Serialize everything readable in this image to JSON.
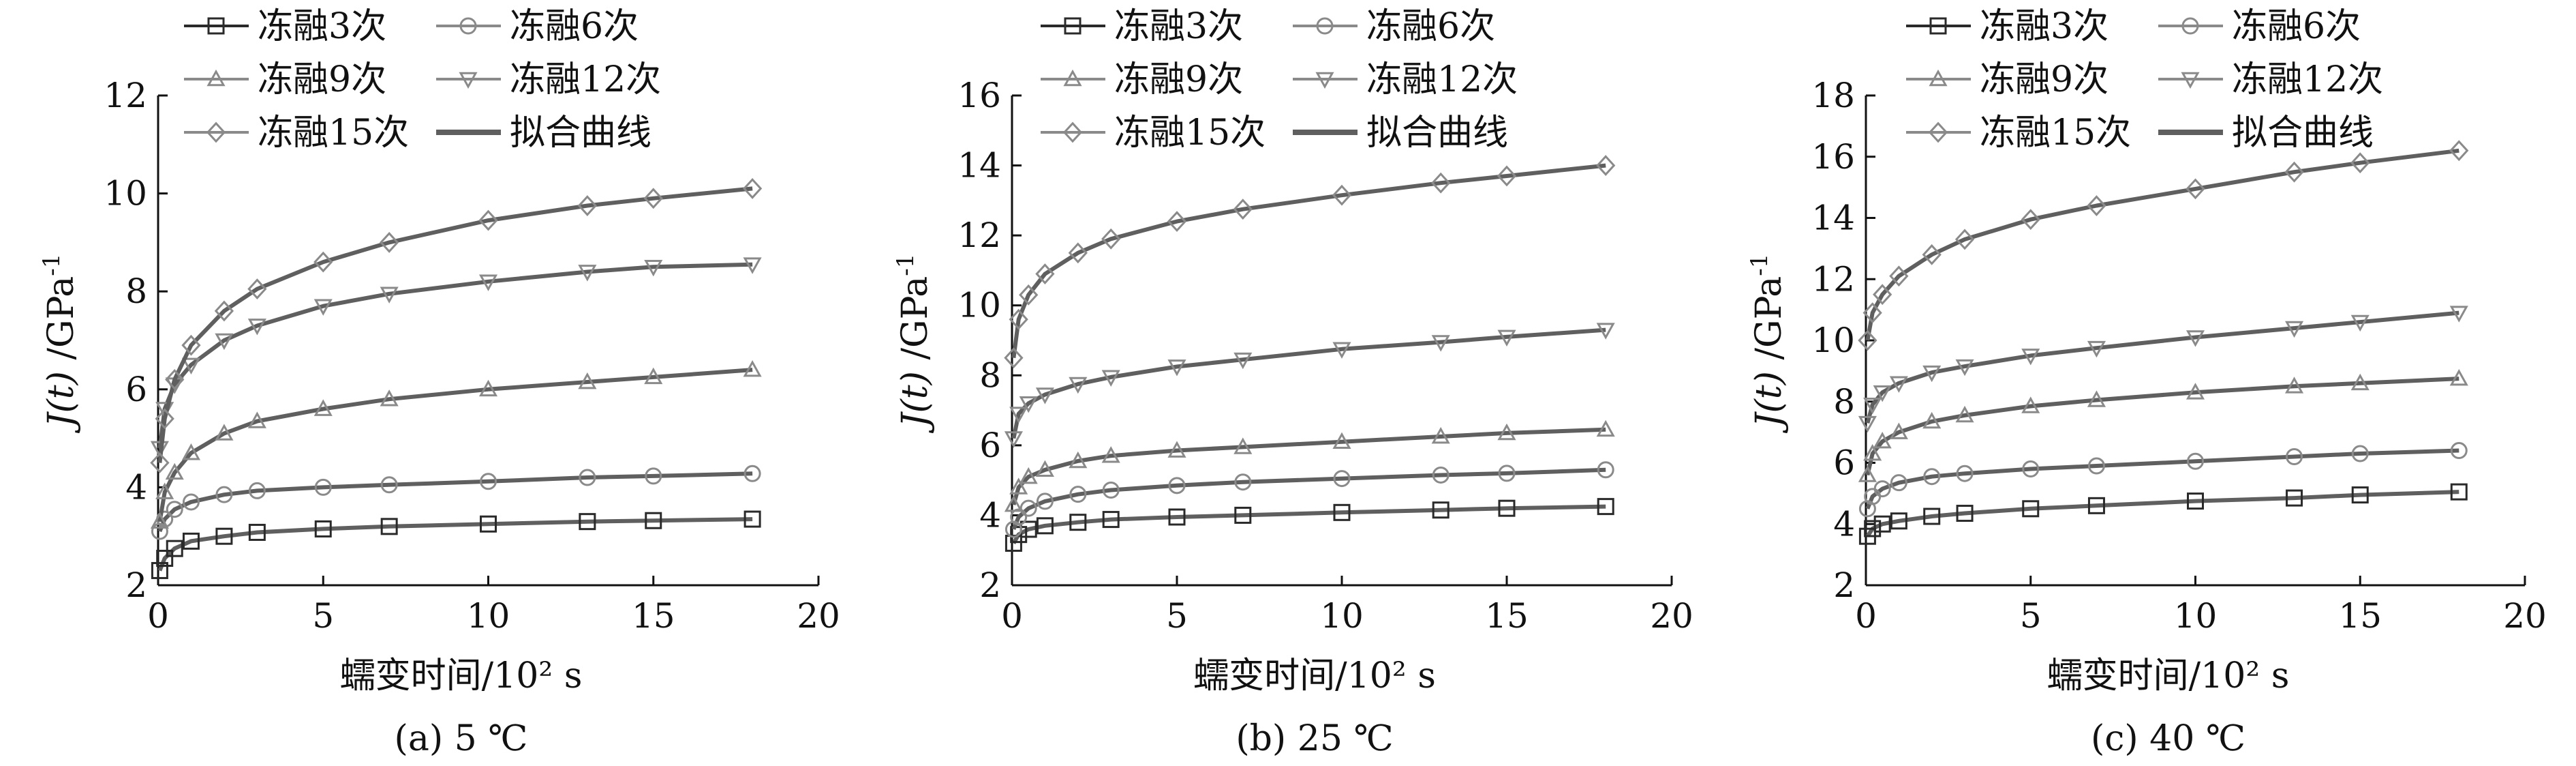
{
  "colors": {
    "axis": "#111111",
    "series": "#8a8a8a",
    "series_dark": "#2a2a2a",
    "fit": "#5f5f5f"
  },
  "legend_labels": {
    "s3": "冻融3次",
    "s6": "冻融6次",
    "s9": "冻融9次",
    "s12": "冻融12次",
    "s15": "冻融15次",
    "fit": "拟合曲线"
  },
  "chart_data": [
    {
      "type": "scatter",
      "caption": "(a) 5 ℃",
      "xlabel": "蠕变时间/10² s",
      "ylabel_main": "J",
      "ylabel_italic_arg": "(t)",
      "ylabel_unit": "/GPa",
      "ylabel_exp": "-1",
      "xlim": [
        0,
        20
      ],
      "ylim": [
        2,
        12
      ],
      "xticks": [
        0,
        5,
        10,
        15,
        20
      ],
      "yticks": [
        2,
        4,
        6,
        8,
        10,
        12
      ],
      "x": [
        0.05,
        0.2,
        0.5,
        1,
        2,
        3,
        5,
        7,
        10,
        13,
        15,
        18
      ],
      "series": [
        {
          "key": "s3",
          "marker": "square",
          "values": [
            2.3,
            2.55,
            2.75,
            2.9,
            3.0,
            3.08,
            3.15,
            3.2,
            3.25,
            3.3,
            3.32,
            3.35
          ]
        },
        {
          "key": "s6",
          "marker": "circle",
          "values": [
            3.1,
            3.35,
            3.55,
            3.7,
            3.85,
            3.93,
            4.0,
            4.05,
            4.12,
            4.2,
            4.23,
            4.28
          ]
        },
        {
          "key": "s9",
          "marker": "triangle",
          "values": [
            3.3,
            3.9,
            4.3,
            4.7,
            5.1,
            5.35,
            5.6,
            5.8,
            6.0,
            6.15,
            6.25,
            6.4
          ]
        },
        {
          "key": "s12",
          "marker": "triangle-down",
          "values": [
            4.8,
            5.6,
            6.1,
            6.5,
            7.0,
            7.3,
            7.7,
            7.95,
            8.2,
            8.4,
            8.5,
            8.55
          ]
        },
        {
          "key": "s15",
          "marker": "diamond",
          "values": [
            4.5,
            5.4,
            6.2,
            6.9,
            7.6,
            8.05,
            8.6,
            9.0,
            9.45,
            9.75,
            9.9,
            10.1
          ]
        }
      ]
    },
    {
      "type": "scatter",
      "caption": "(b) 25 ℃",
      "xlabel": "蠕变时间/10² s",
      "ylabel_main": "J",
      "ylabel_italic_arg": "(t)",
      "ylabel_unit": "/GPa",
      "ylabel_exp": "-1",
      "xlim": [
        0,
        20
      ],
      "ylim": [
        2,
        16
      ],
      "xticks": [
        0,
        5,
        10,
        15,
        20
      ],
      "yticks": [
        2,
        4,
        6,
        8,
        10,
        12,
        14,
        16
      ],
      "x": [
        0.05,
        0.2,
        0.5,
        1,
        2,
        3,
        5,
        7,
        10,
        13,
        15,
        18
      ],
      "series": [
        {
          "key": "s3",
          "marker": "square",
          "values": [
            3.2,
            3.45,
            3.6,
            3.7,
            3.8,
            3.88,
            3.95,
            4.0,
            4.08,
            4.15,
            4.2,
            4.25
          ]
        },
        {
          "key": "s6",
          "marker": "circle",
          "values": [
            3.6,
            3.95,
            4.2,
            4.4,
            4.6,
            4.72,
            4.85,
            4.95,
            5.05,
            5.15,
            5.2,
            5.3
          ]
        },
        {
          "key": "s9",
          "marker": "triangle",
          "values": [
            4.3,
            4.8,
            5.1,
            5.3,
            5.55,
            5.7,
            5.85,
            5.95,
            6.1,
            6.25,
            6.35,
            6.45
          ]
        },
        {
          "key": "s12",
          "marker": "triangle-down",
          "values": [
            6.2,
            6.9,
            7.2,
            7.45,
            7.75,
            7.95,
            8.25,
            8.45,
            8.75,
            8.95,
            9.1,
            9.3
          ]
        },
        {
          "key": "s15",
          "marker": "diamond",
          "values": [
            8.5,
            9.6,
            10.3,
            10.9,
            11.5,
            11.9,
            12.4,
            12.75,
            13.15,
            13.5,
            13.7,
            14.0
          ]
        }
      ]
    },
    {
      "type": "scatter",
      "caption": "(c) 40 ℃",
      "xlabel": "蠕变时间/10² s",
      "ylabel_main": "J",
      "ylabel_italic_arg": "(t)",
      "ylabel_unit": "/GPa",
      "ylabel_exp": "-1",
      "xlim": [
        0,
        20
      ],
      "ylim": [
        2,
        18
      ],
      "xticks": [
        0,
        5,
        10,
        15,
        20
      ],
      "yticks": [
        2,
        4,
        6,
        8,
        10,
        12,
        14,
        16,
        18
      ],
      "x": [
        0.05,
        0.2,
        0.5,
        1,
        2,
        3,
        5,
        7,
        10,
        13,
        15,
        18
      ],
      "series": [
        {
          "key": "s3",
          "marker": "square",
          "values": [
            3.6,
            3.85,
            4.0,
            4.1,
            4.25,
            4.35,
            4.5,
            4.6,
            4.75,
            4.85,
            4.95,
            5.05
          ]
        },
        {
          "key": "s6",
          "marker": "circle",
          "values": [
            4.5,
            4.9,
            5.15,
            5.35,
            5.55,
            5.65,
            5.8,
            5.9,
            6.05,
            6.2,
            6.3,
            6.4
          ]
        },
        {
          "key": "s9",
          "marker": "triangle",
          "values": [
            5.6,
            6.3,
            6.7,
            7.0,
            7.35,
            7.55,
            7.85,
            8.05,
            8.3,
            8.5,
            8.6,
            8.75
          ]
        },
        {
          "key": "s12",
          "marker": "triangle-down",
          "values": [
            7.3,
            7.9,
            8.3,
            8.6,
            8.95,
            9.15,
            9.5,
            9.75,
            10.1,
            10.4,
            10.6,
            10.9
          ]
        },
        {
          "key": "s15",
          "marker": "diamond",
          "values": [
            10.0,
            10.9,
            11.5,
            12.1,
            12.8,
            13.3,
            13.95,
            14.4,
            14.95,
            15.5,
            15.8,
            16.2
          ]
        }
      ]
    }
  ]
}
